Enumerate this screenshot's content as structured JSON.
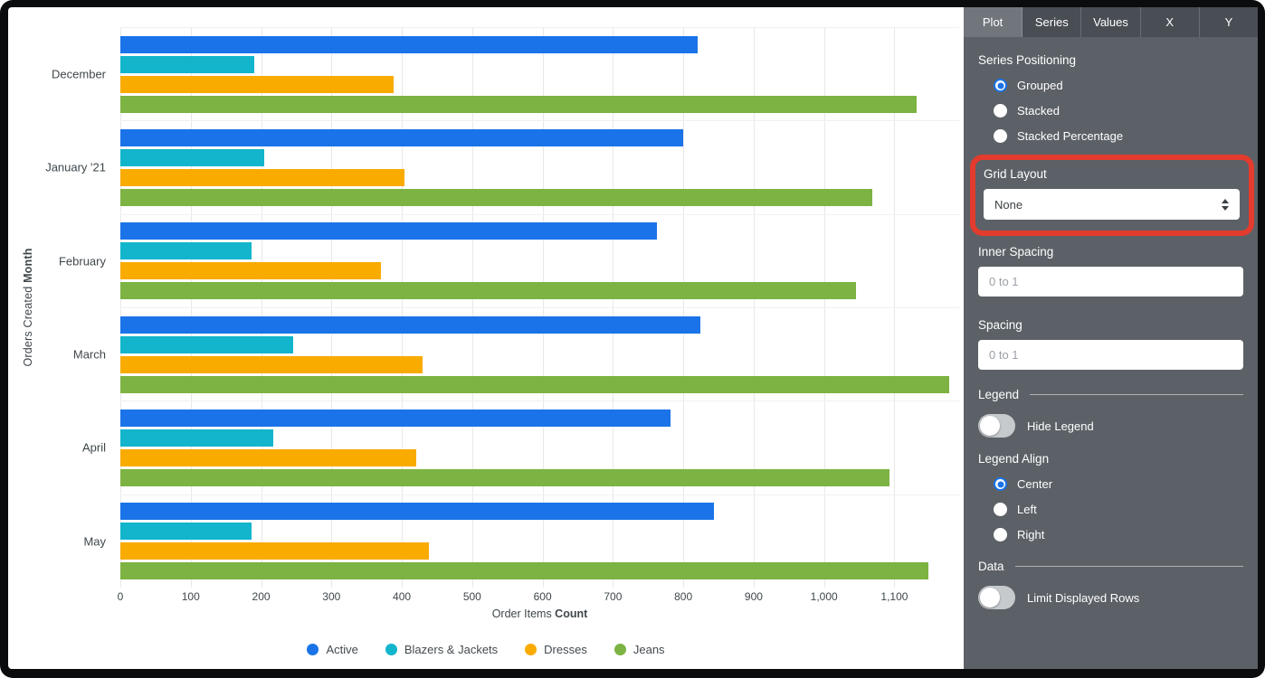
{
  "panel": {
    "tabs": [
      {
        "label": "Plot",
        "active": true
      },
      {
        "label": "Series",
        "active": false
      },
      {
        "label": "Values",
        "active": false
      },
      {
        "label": "X",
        "active": false
      },
      {
        "label": "Y",
        "active": false
      }
    ],
    "series_positioning": {
      "label": "Series Positioning",
      "options": [
        {
          "label": "Grouped",
          "selected": true
        },
        {
          "label": "Stacked",
          "selected": false
        },
        {
          "label": "Stacked Percentage",
          "selected": false
        }
      ]
    },
    "grid_layout": {
      "label": "Grid Layout",
      "value": "None",
      "highlighted": true,
      "highlight_color": "#e33b2d"
    },
    "inner_spacing": {
      "label": "Inner Spacing",
      "value": "",
      "placeholder": "0 to 1"
    },
    "spacing": {
      "label": "Spacing",
      "value": "",
      "placeholder": "0 to 1"
    },
    "legend_section": {
      "label": "Legend",
      "hide_legend": {
        "label": "Hide Legend",
        "on": false
      }
    },
    "legend_align": {
      "label": "Legend Align",
      "options": [
        {
          "label": "Center",
          "selected": true
        },
        {
          "label": "Left",
          "selected": false
        },
        {
          "label": "Right",
          "selected": false
        }
      ]
    },
    "data_section": {
      "label": "Data",
      "limit_displayed_rows": {
        "label": "Limit Displayed Rows",
        "on": false
      }
    }
  },
  "chart_data": {
    "type": "bar",
    "orientation": "horizontal",
    "categories": [
      "December",
      "January '21",
      "February",
      "March",
      "April",
      "May"
    ],
    "series": [
      {
        "name": "Active",
        "color": "#1A73E8",
        "values": [
          820,
          800,
          762,
          824,
          782,
          843
        ]
      },
      {
        "name": "Blazers & Jackets",
        "color": "#12B5CB",
        "values": [
          190,
          205,
          186,
          246,
          217,
          187
        ]
      },
      {
        "name": "Dresses",
        "color": "#F9AB00",
        "values": [
          388,
          404,
          370,
          429,
          421,
          439
        ]
      },
      {
        "name": "Jeans",
        "color": "#7CB342",
        "values": [
          1132,
          1068,
          1046,
          1178,
          1093,
          1148
        ]
      }
    ],
    "xlabel_regular": "Order Items ",
    "xlabel_bold": "Count",
    "ylabel_regular": "Orders Created ",
    "ylabel_bold": "Month",
    "x_ticks": [
      0,
      100,
      200,
      300,
      400,
      500,
      600,
      700,
      800,
      900,
      1000,
      1100
    ],
    "x_tick_labels": [
      "0",
      "100",
      "200",
      "300",
      "400",
      "500",
      "600",
      "700",
      "800",
      "900",
      "1,000",
      "1,100"
    ],
    "xlim": [
      0,
      1192
    ],
    "grid": true,
    "legend_position": "bottom-center"
  }
}
